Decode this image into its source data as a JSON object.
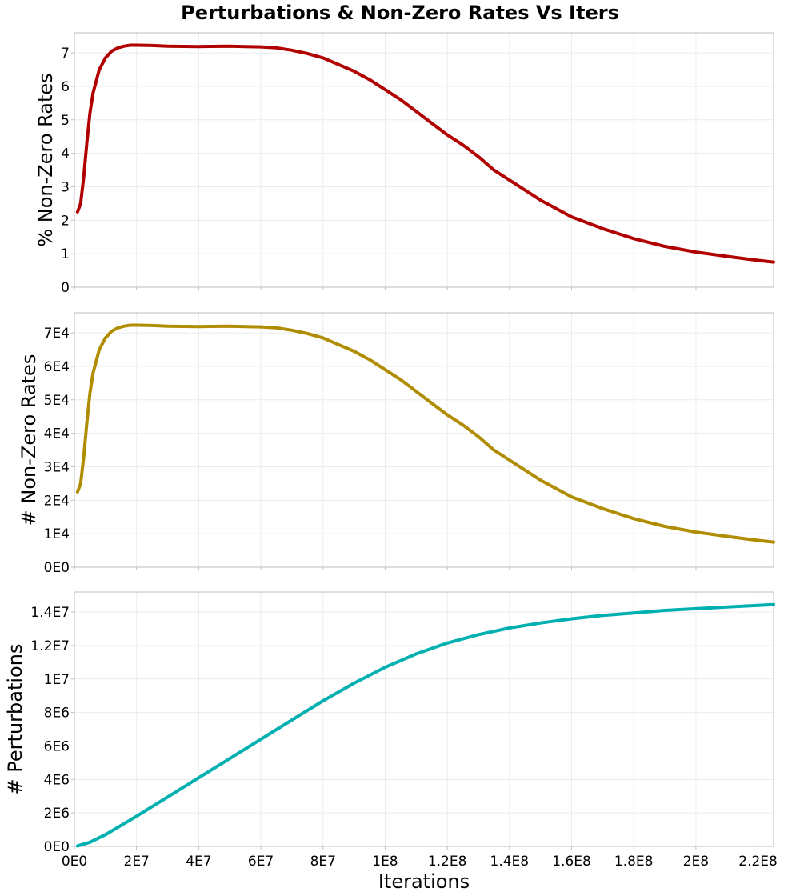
{
  "chart_data": {
    "type": "line",
    "title": "Perturbations & Non-Zero Rates Vs Iters",
    "xlabel": "Iterations",
    "xlim": [
      0,
      225000000
    ],
    "x_ticks": [
      0,
      20000000,
      40000000,
      60000000,
      80000000,
      100000000,
      120000000,
      140000000,
      160000000,
      180000000,
      200000000,
      220000000
    ],
    "x_tick_labels": [
      "0E0",
      "2E7",
      "4E7",
      "6E7",
      "8E7",
      "1E8",
      "1.2E8",
      "1.4E8",
      "1.6E8",
      "1.8E8",
      "2E8",
      "2.2E8"
    ],
    "panels": [
      {
        "name": "pct-nonzero",
        "ylabel": "% Non-Zero Rates",
        "ylim": [
          0,
          7.6
        ],
        "y_ticks": [
          0,
          1,
          2,
          3,
          4,
          5,
          6,
          7
        ],
        "y_tick_labels": [
          "0",
          "1",
          "2",
          "3",
          "4",
          "5",
          "6",
          "7"
        ],
        "color": "#b00000",
        "series": {
          "name": "% Non-Zero Rates",
          "x": [
            1000000,
            2000000,
            3000000,
            4000000,
            5000000,
            6000000,
            8000000,
            10000000,
            12000000,
            14000000,
            16000000,
            18000000,
            20000000,
            25000000,
            30000000,
            40000000,
            50000000,
            55000000,
            60000000,
            65000000,
            70000000,
            75000000,
            80000000,
            85000000,
            90000000,
            95000000,
            100000000,
            105000000,
            110000000,
            115000000,
            120000000,
            125000000,
            130000000,
            135000000,
            140000000,
            150000000,
            160000000,
            170000000,
            180000000,
            190000000,
            200000000,
            210000000,
            220000000,
            225000000
          ],
          "y": [
            2.25,
            2.5,
            3.3,
            4.3,
            5.2,
            5.8,
            6.5,
            6.85,
            7.05,
            7.15,
            7.2,
            7.23,
            7.23,
            7.22,
            7.2,
            7.19,
            7.2,
            7.19,
            7.18,
            7.15,
            7.08,
            6.98,
            6.85,
            6.65,
            6.45,
            6.2,
            5.9,
            5.6,
            5.25,
            4.9,
            4.55,
            4.25,
            3.9,
            3.5,
            3.2,
            2.6,
            2.1,
            1.75,
            1.45,
            1.22,
            1.05,
            0.92,
            0.8,
            0.75
          ]
        }
      },
      {
        "name": "count-nonzero",
        "ylabel": "# Non-Zero Rates",
        "ylim": [
          0,
          76000
        ],
        "y_ticks": [
          0,
          10000,
          20000,
          30000,
          40000,
          50000,
          60000,
          70000
        ],
        "y_tick_labels": [
          "0E0",
          "1E4",
          "2E4",
          "3E4",
          "4E4",
          "5E4",
          "6E4",
          "7E4"
        ],
        "color": "#b08c00",
        "series": {
          "name": "# Non-Zero Rates",
          "x": [
            1000000,
            2000000,
            3000000,
            4000000,
            5000000,
            6000000,
            8000000,
            10000000,
            12000000,
            14000000,
            16000000,
            18000000,
            20000000,
            25000000,
            30000000,
            40000000,
            50000000,
            55000000,
            60000000,
            65000000,
            70000000,
            75000000,
            80000000,
            85000000,
            90000000,
            95000000,
            100000000,
            105000000,
            110000000,
            115000000,
            120000000,
            125000000,
            130000000,
            135000000,
            140000000,
            150000000,
            160000000,
            170000000,
            180000000,
            190000000,
            200000000,
            210000000,
            220000000,
            225000000
          ],
          "y": [
            22500,
            25000,
            33000,
            43000,
            52000,
            58000,
            65000,
            68500,
            70500,
            71500,
            72000,
            72300,
            72300,
            72200,
            72000,
            71900,
            72000,
            71900,
            71800,
            71500,
            70800,
            69800,
            68500,
            66500,
            64500,
            62000,
            59000,
            56000,
            52500,
            49000,
            45500,
            42500,
            39000,
            35000,
            32000,
            26000,
            21000,
            17500,
            14500,
            12200,
            10500,
            9200,
            8000,
            7500
          ]
        }
      },
      {
        "name": "perturbations",
        "ylabel": "# Perturbations",
        "ylim": [
          0,
          15200000
        ],
        "y_ticks": [
          0,
          2000000,
          4000000,
          6000000,
          8000000,
          10000000,
          12000000,
          14000000
        ],
        "y_tick_labels": [
          "0E0",
          "2E6",
          "4E6",
          "6E6",
          "8E6",
          "1E7",
          "1.2E7",
          "1.4E7"
        ],
        "color": "#00b0b0",
        "series": {
          "name": "# Perturbations",
          "x": [
            1000000,
            5000000,
            10000000,
            15000000,
            20000000,
            30000000,
            40000000,
            50000000,
            60000000,
            70000000,
            80000000,
            90000000,
            100000000,
            110000000,
            120000000,
            130000000,
            140000000,
            150000000,
            160000000,
            170000000,
            180000000,
            190000000,
            200000000,
            210000000,
            220000000,
            225000000
          ],
          "y": [
            30000,
            250000,
            700000,
            1250000,
            1800000,
            2950000,
            4100000,
            5250000,
            6400000,
            7550000,
            8700000,
            9750000,
            10700000,
            11500000,
            12150000,
            12650000,
            13050000,
            13350000,
            13600000,
            13800000,
            13950000,
            14100000,
            14200000,
            14300000,
            14400000,
            14450000
          ]
        }
      }
    ]
  }
}
